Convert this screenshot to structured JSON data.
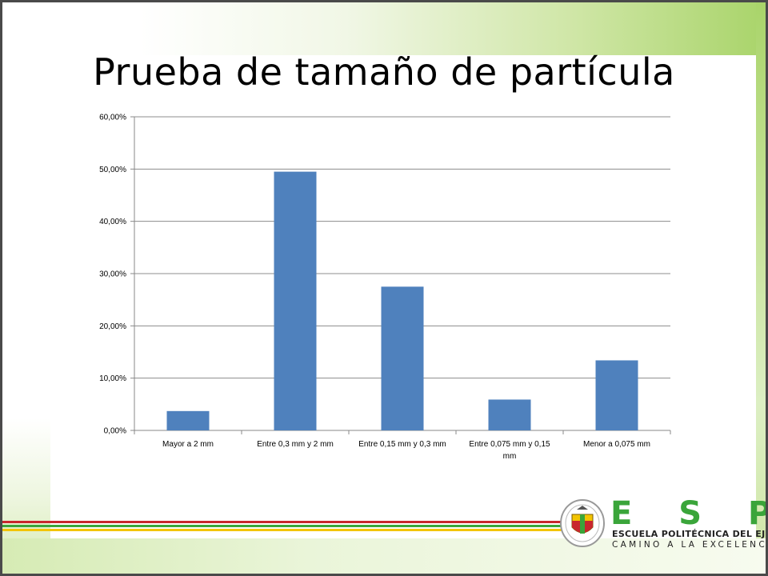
{
  "slide": {
    "title": "Prueba de tamaño de partícula"
  },
  "branding": {
    "brand_name": "E S P E",
    "institution": "ESCUELA POLITÉCNICA DEL EJÉRCITO",
    "tagline": "CAMINO A LA EXCELENCIA",
    "brand_color": "#3aa53a",
    "stripe_colors": [
      "#c8262d",
      "#3aa53a",
      "#f2c400"
    ]
  },
  "chart_data": {
    "type": "bar",
    "categories": [
      [
        "Mayor a 2 mm"
      ],
      [
        "Entre 0,3 mm y 2 mm"
      ],
      [
        "Entre 0,15 mm y 0,3 mm"
      ],
      [
        "Entre 0,075 mm y 0,15",
        "mm"
      ],
      [
        "Menor a 0,075 mm"
      ]
    ],
    "values": [
      3.7,
      49.5,
      27.5,
      5.9,
      13.4
    ],
    "ylim": [
      0,
      60
    ],
    "yticks": [
      0,
      10,
      20,
      30,
      40,
      50,
      60
    ],
    "ytick_labels": [
      "0,00%",
      "10,00%",
      "20,00%",
      "30,00%",
      "40,00%",
      "50,00%",
      "60,00%"
    ],
    "bar_color": "#4f81bd",
    "grid": true,
    "legend": "none"
  }
}
